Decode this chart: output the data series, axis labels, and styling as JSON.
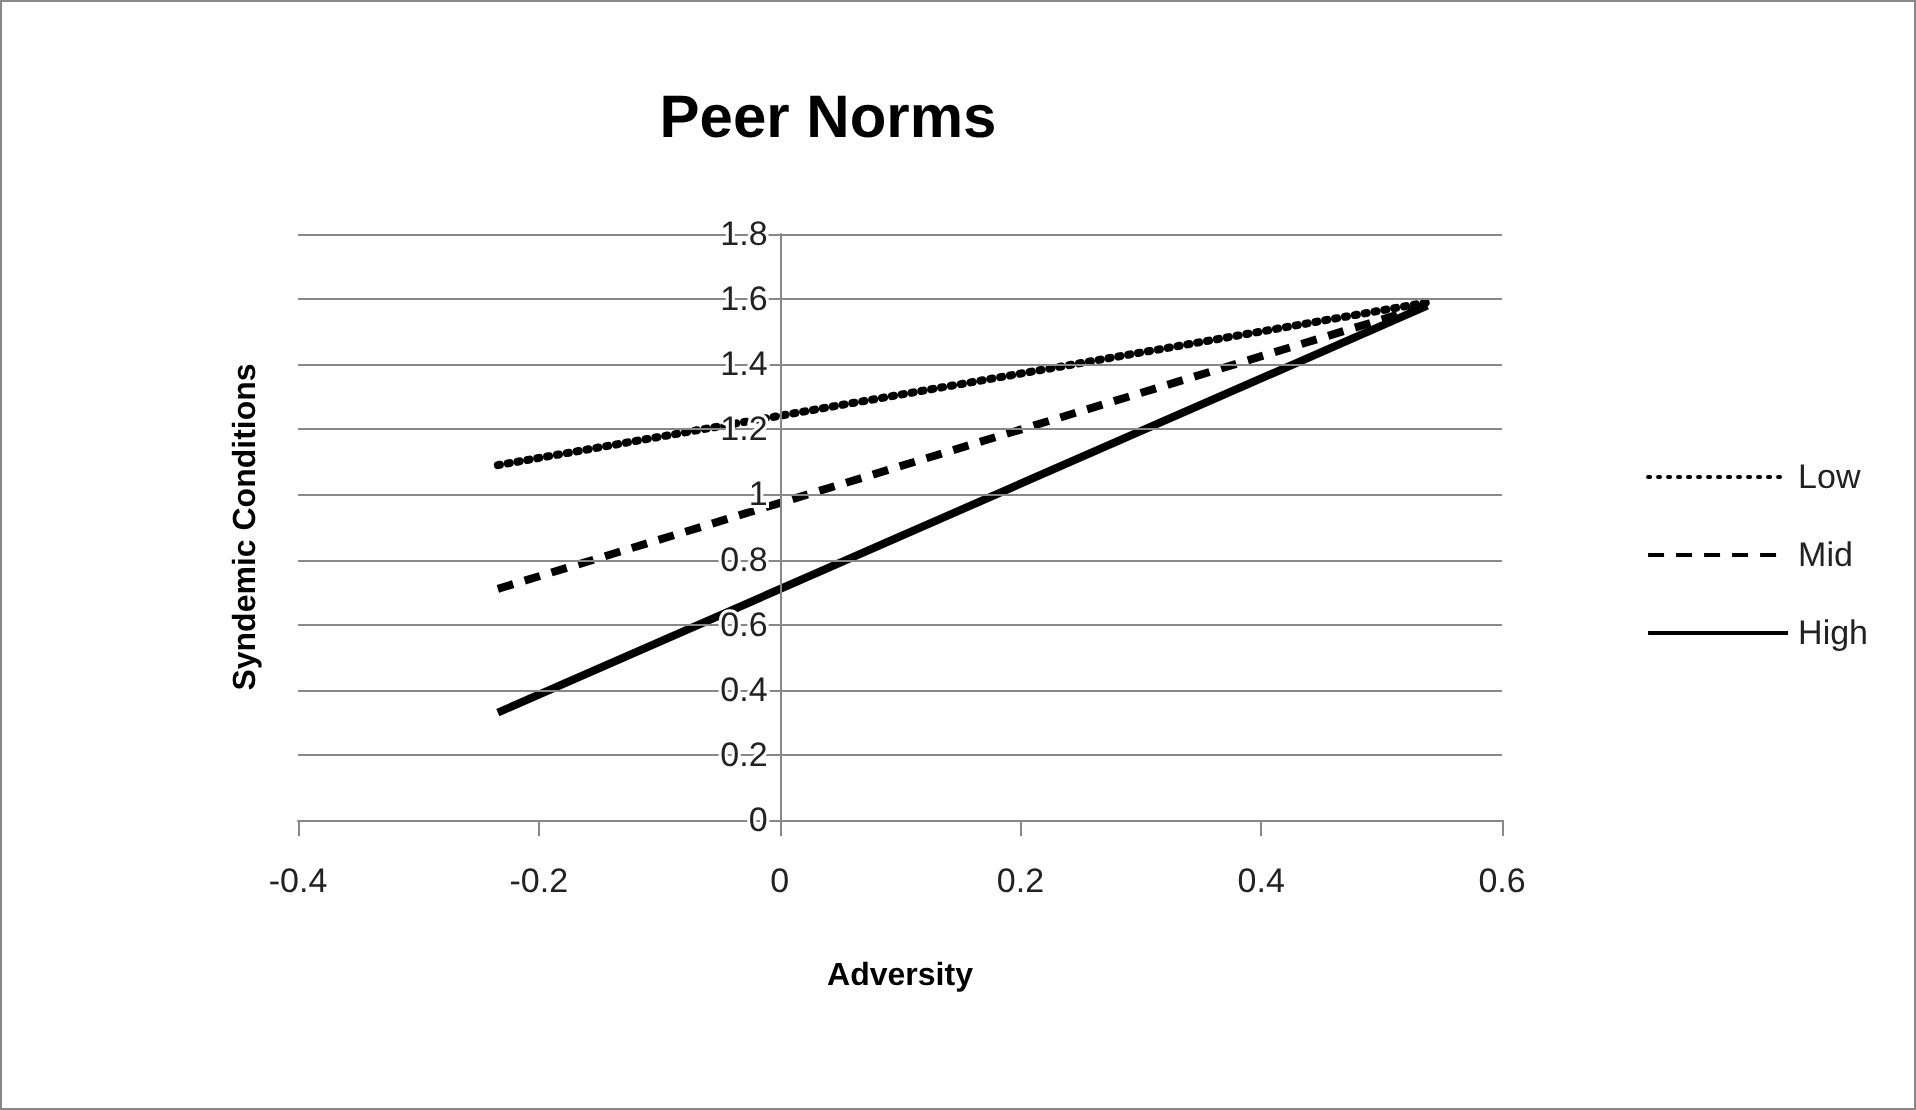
{
  "chart_data": {
    "type": "line",
    "title": "Peer Norms",
    "xlabel": "Adversity",
    "ylabel": "Syndemic Conditions",
    "x": [
      -0.234,
      0.538
    ],
    "series": [
      {
        "name": "Low",
        "color": "#000000",
        "line_style": "dotted",
        "values": [
          1.09,
          1.59
        ]
      },
      {
        "name": "Mid",
        "color": "#000000",
        "line_style": "dashed",
        "values": [
          0.71,
          1.58
        ]
      },
      {
        "name": "High",
        "color": "#000000",
        "line_style": "solid",
        "values": [
          0.33,
          1.58
        ]
      }
    ],
    "xlim": [
      -0.4,
      0.6
    ],
    "xticks": [
      -0.4,
      -0.2,
      0,
      0.2,
      0.4,
      0.6
    ],
    "ylim": [
      0,
      1.8
    ],
    "yticks": [
      0,
      0.2,
      0.4,
      0.6,
      0.8,
      1,
      1.2,
      1.4,
      1.6,
      1.8
    ],
    "grid": "y",
    "legend": "right",
    "marker": "none"
  }
}
